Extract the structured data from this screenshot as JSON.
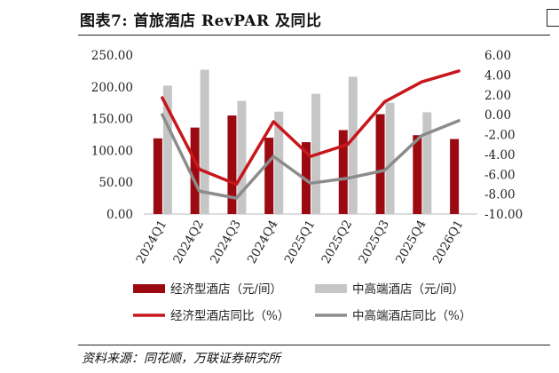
{
  "header": {
    "title": "图表7:  首旅酒店 RevPAR 及同比"
  },
  "source": "资料来源：同花顺，万联证券研究所",
  "chart_data": {
    "type": "bar",
    "categories": [
      "2024Q1",
      "2024Q2",
      "2024Q3",
      "2024Q4",
      "2025Q1",
      "2025Q2",
      "2025Q3",
      "2025Q4",
      "2026Q1"
    ],
    "y_left_ticks": [
      "250.00",
      "200.00",
      "150.00",
      "100.00",
      "50.00",
      "0.00"
    ],
    "y_right_ticks": [
      "6.00",
      "4.00",
      "2.00",
      "0.00",
      "-2.00",
      "-4.00",
      "-6.00",
      "-8.00",
      "-10.00"
    ],
    "ylim_left": [
      0,
      250
    ],
    "ylim_right": [
      -10,
      6
    ],
    "series": [
      {
        "name": "经济型酒店（元/间）",
        "type": "bar",
        "axis": "left",
        "color": "#9b0a10",
        "values": [
          119,
          136,
          155,
          120,
          113,
          132,
          157,
          124,
          118
        ]
      },
      {
        "name": "中高端酒店（元/间）",
        "type": "bar",
        "axis": "left",
        "color": "#c6c6c6",
        "values": [
          202,
          227,
          178,
          161,
          189,
          216,
          175,
          160,
          0
        ]
      },
      {
        "name": "经济型酒店同比（%）",
        "type": "line",
        "axis": "right",
        "color": "#c8161d",
        "values": [
          1.7,
          -5.5,
          -7.0,
          -0.7,
          -4.2,
          -3.0,
          1.3,
          3.3,
          4.4
        ]
      },
      {
        "name": "中高端酒店同比（%）",
        "type": "line",
        "axis": "right",
        "color": "#8c8c8c",
        "values": [
          0.0,
          -7.7,
          -8.4,
          -4.2,
          -6.9,
          -6.4,
          -5.6,
          -2.1,
          -0.6
        ]
      }
    ],
    "legend_placement": "bottom",
    "grid": false
  }
}
